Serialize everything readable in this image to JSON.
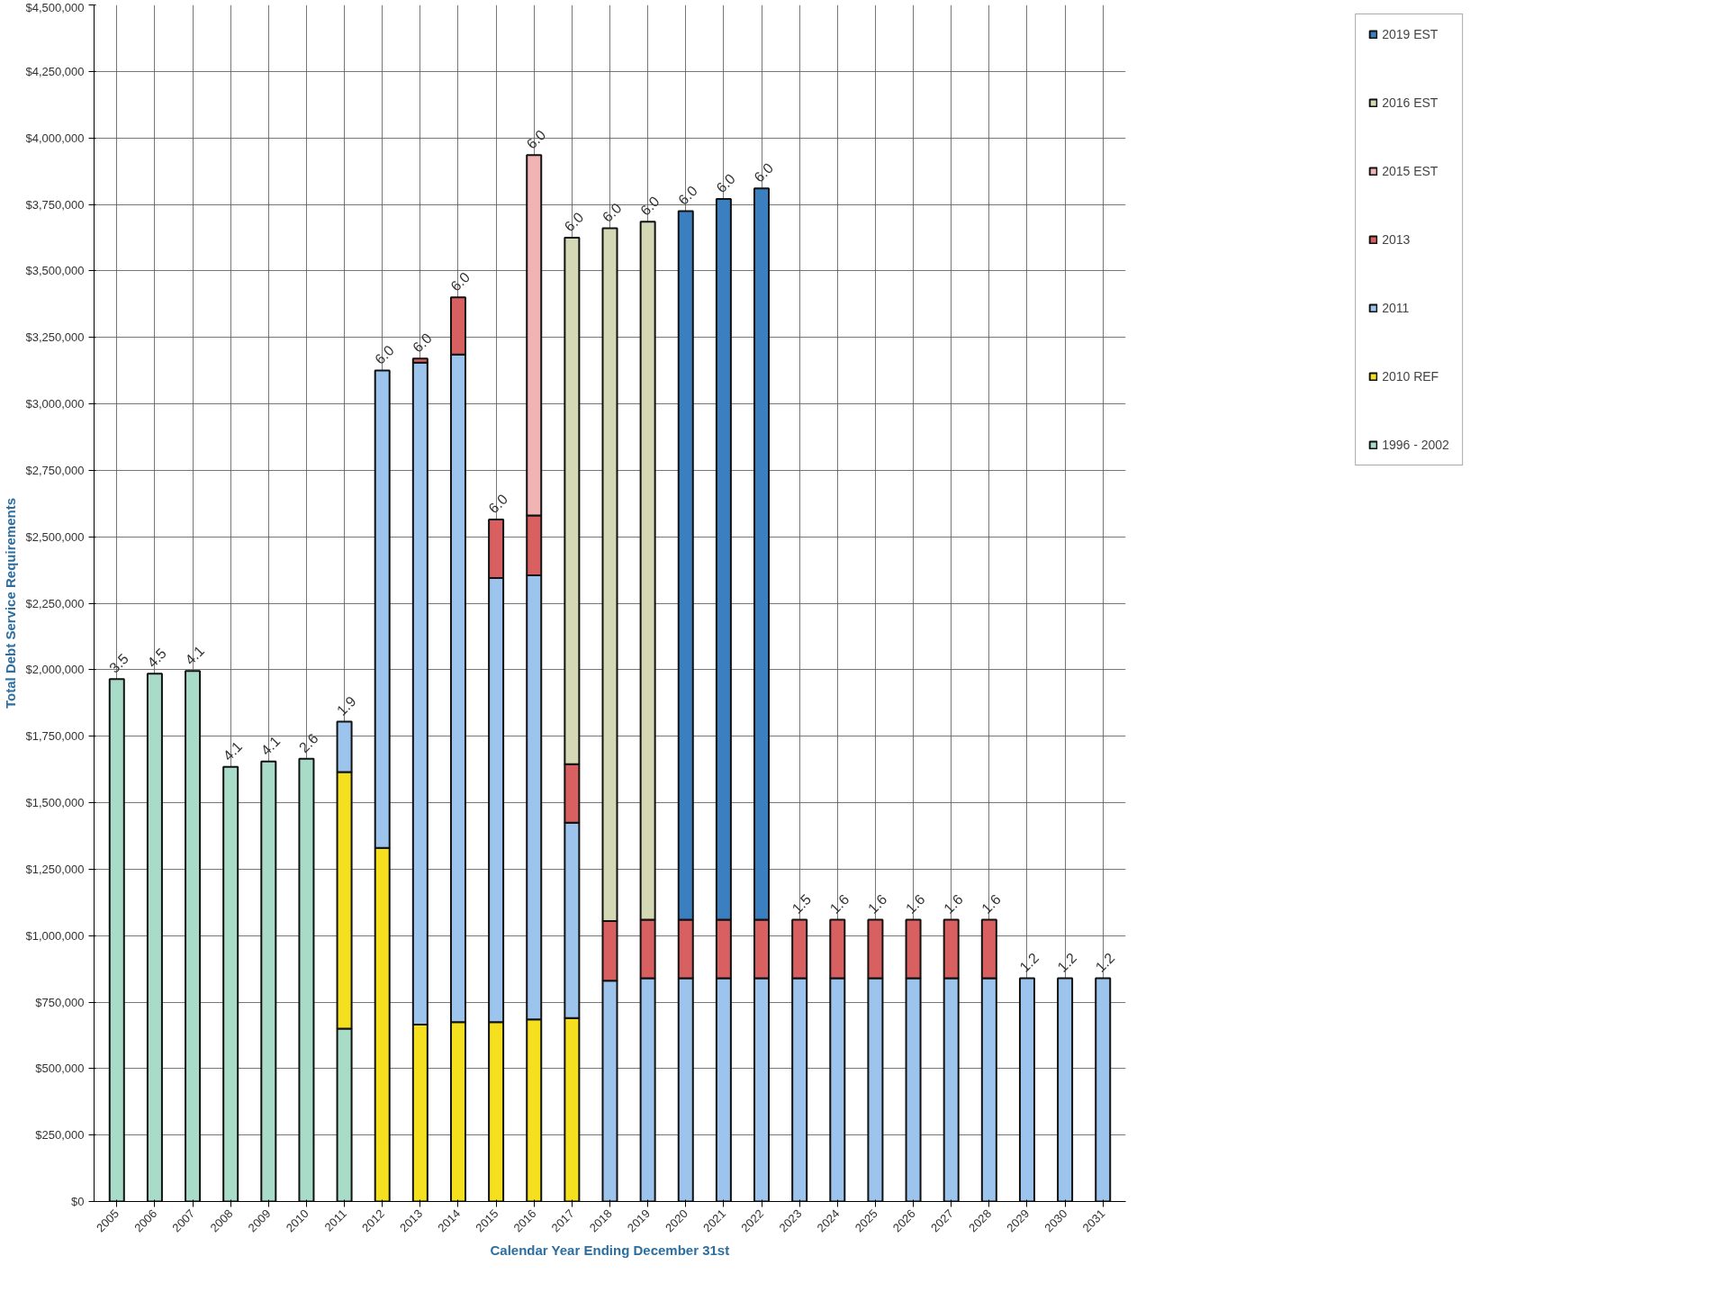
{
  "chart_data": {
    "type": "bar",
    "stacked": true,
    "xlabel": "Calendar Year Ending December 31st",
    "ylabel": "Total Debt Service Requirements",
    "categories": [
      "2005",
      "2006",
      "2007",
      "2008",
      "2009",
      "2010",
      "2011",
      "2012",
      "2013",
      "2014",
      "2015",
      "2016",
      "2017",
      "2018",
      "2019",
      "2020",
      "2021",
      "2022",
      "2023",
      "2024",
      "2025",
      "2026",
      "2027",
      "2028",
      "2029",
      "2030",
      "2031"
    ],
    "series": [
      {
        "name": "1996 - 2002",
        "color": "#a8dcc8",
        "values": [
          1965000,
          1985000,
          1995000,
          1635000,
          1655000,
          1665000,
          650000,
          null,
          null,
          null,
          null,
          null,
          null,
          null,
          null,
          null,
          null,
          null,
          null,
          null,
          null,
          null,
          null,
          null,
          null,
          null,
          null
        ]
      },
      {
        "name": "2010 REF",
        "color": "#f5e020",
        "values": [
          null,
          null,
          null,
          null,
          null,
          null,
          965000,
          1330000,
          665000,
          675000,
          675000,
          685000,
          690000,
          null,
          null,
          null,
          null,
          null,
          null,
          null,
          null,
          null,
          null,
          null,
          null,
          null,
          null
        ]
      },
      {
        "name": "2011",
        "color": "#9cc4ec",
        "values": [
          null,
          null,
          null,
          null,
          null,
          null,
          190000,
          1795000,
          2490000,
          2510000,
          1670000,
          1670000,
          735000,
          830000,
          840000,
          840000,
          840000,
          840000,
          840000,
          840000,
          840000,
          840000,
          840000,
          840000,
          840000,
          840000,
          840000
        ]
      },
      {
        "name": "2013",
        "color": "#d96060",
        "values": [
          null,
          null,
          null,
          null,
          null,
          null,
          null,
          null,
          15000,
          215000,
          220000,
          225000,
          220000,
          225000,
          220000,
          220000,
          220000,
          220000,
          220000,
          220000,
          220000,
          220000,
          220000,
          220000,
          null,
          null,
          null
        ]
      },
      {
        "name": "2015 EST",
        "color": "#f0b4b4",
        "values": [
          null,
          null,
          null,
          null,
          null,
          null,
          null,
          null,
          null,
          null,
          null,
          1355000,
          null,
          null,
          null,
          null,
          null,
          null,
          null,
          null,
          null,
          null,
          null,
          null,
          null,
          null,
          null
        ]
      },
      {
        "name": "2016 EST",
        "color": "#d4d8b4",
        "values": [
          null,
          null,
          null,
          null,
          null,
          null,
          null,
          null,
          null,
          null,
          null,
          null,
          1980000,
          2605000,
          2625000,
          null,
          null,
          null,
          null,
          null,
          null,
          null,
          null,
          null,
          null,
          null,
          null
        ]
      },
      {
        "name": "2019 EST",
        "color": "#3a80c0",
        "values": [
          null,
          null,
          null,
          null,
          null,
          null,
          null,
          null,
          null,
          null,
          null,
          null,
          null,
          null,
          null,
          2665000,
          2710000,
          2750000,
          null,
          null,
          null,
          null,
          null,
          null,
          null,
          null,
          null
        ]
      }
    ],
    "ylim": [
      0,
      4500000
    ],
    "yticks": [
      {
        "value": 0,
        "label": "$0"
      },
      {
        "value": 250000,
        "label": "$250,000"
      },
      {
        "value": 500000,
        "label": "$500,000"
      },
      {
        "value": 750000,
        "label": "$750,000"
      },
      {
        "value": 1000000,
        "label": "$1,000,000"
      },
      {
        "value": 1250000,
        "label": "$1,250,000"
      },
      {
        "value": 1500000,
        "label": "$1,500,000"
      },
      {
        "value": 1750000,
        "label": "$1,750,000"
      },
      {
        "value": 2000000,
        "label": "$2,000,000"
      },
      {
        "value": 2250000,
        "label": "$2,250,000"
      },
      {
        "value": 2500000,
        "label": "$2,500,000"
      },
      {
        "value": 2750000,
        "label": "$2,750,000"
      },
      {
        "value": 3000000,
        "label": "$3,000,000"
      },
      {
        "value": 3250000,
        "label": "$3,250,000"
      },
      {
        "value": 3500000,
        "label": "$3,500,000"
      },
      {
        "value": 3750000,
        "label": "$3,750,000"
      },
      {
        "value": 4000000,
        "label": "$4,000,000"
      },
      {
        "value": 4250000,
        "label": "$4,250,000"
      },
      {
        "value": 4500000,
        "label": "$4,500,000"
      }
    ],
    "annotations": [
      {
        "text": "3.5",
        "x": "2005",
        "y": 1965000
      },
      {
        "text": "4.5",
        "x": "2006",
        "y": 1985000
      },
      {
        "text": "4.1",
        "x": "2007",
        "y": 1995000
      },
      {
        "text": "4.1",
        "x": "2008",
        "y": 1635000
      },
      {
        "text": "4.1",
        "x": "2009",
        "y": 1655000
      },
      {
        "text": "2.6",
        "x": "2010",
        "y": 1665000
      },
      {
        "text": "1.9",
        "x": "2011",
        "y": 1805000
      },
      {
        "text": "6.0",
        "x": "2012",
        "y": 3125000
      },
      {
        "text": "6.0",
        "x": "2013",
        "y": 3170000
      },
      {
        "text": "6.0",
        "x": "2014",
        "y": 3400000
      },
      {
        "text": "6.0",
        "x": "2015",
        "y": 2565000
      },
      {
        "text": "6.0",
        "x": "2016",
        "y": 3935000
      },
      {
        "text": "6.0",
        "x": "2017",
        "y": 3625000
      },
      {
        "text": "6.0",
        "x": "2018",
        "y": 3660000
      },
      {
        "text": "6.0",
        "x": "2019",
        "y": 3685000
      },
      {
        "text": "6.0",
        "x": "2020",
        "y": 3725000
      },
      {
        "text": "6.0",
        "x": "2021",
        "y": 3770000
      },
      {
        "text": "6.0",
        "x": "2022",
        "y": 3810000
      },
      {
        "text": "1.5",
        "x": "2023",
        "y": 1060000
      },
      {
        "text": "1.6",
        "x": "2024",
        "y": 1060000
      },
      {
        "text": "1.6",
        "x": "2025",
        "y": 1060000
      },
      {
        "text": "1.6",
        "x": "2026",
        "y": 1060000
      },
      {
        "text": "1.6",
        "x": "2027",
        "y": 1060000
      },
      {
        "text": "1.6",
        "x": "2028",
        "y": 1060000
      },
      {
        "text": "1.2",
        "x": "2029",
        "y": 840000
      },
      {
        "text": "1.2",
        "x": "2030",
        "y": 840000
      },
      {
        "text": "1.2",
        "x": "2031",
        "y": 840000
      }
    ],
    "grid": true,
    "legend": "right"
  }
}
